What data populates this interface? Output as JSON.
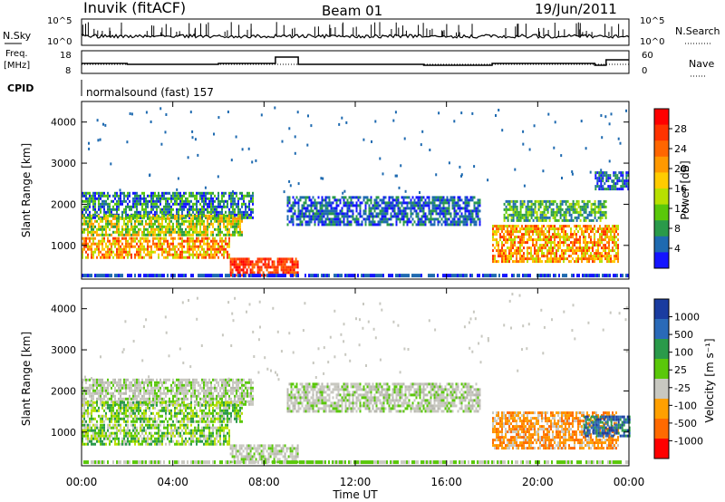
{
  "header": {
    "station": "Inuvik (fitACF)",
    "beam": "Beam 01",
    "date": "19/Jun/2011"
  },
  "noise_panel": {
    "left_label": "N.Sky",
    "right_label": "N.Search",
    "ticks_top": "10^5",
    "ticks_bottom": "10^0",
    "right_ticks_top": "10^5",
    "right_ticks_bottom": "10^0"
  },
  "freq_panel": {
    "label_line1": "Freq.",
    "label_line2": "[MHz]",
    "right_label": "Nave",
    "left_ticks": [
      "18",
      "8"
    ],
    "right_ticks": [
      "60",
      "0"
    ]
  },
  "cpid": {
    "label": "CPID",
    "value": "normalsound (fast) 157"
  },
  "chart_data": [
    {
      "type": "heatmap",
      "name": "power",
      "ylabel": "Slant Range [km]",
      "xlabel": "",
      "x_ticks": [
        "00:00",
        "04:00",
        "08:00",
        "12:00",
        "16:00",
        "20:00",
        "00:00"
      ],
      "x_range_hours": [
        0,
        24
      ],
      "y_ticks": [
        1000,
        2000,
        3000,
        4000
      ],
      "y_range_km": [
        180,
        4500
      ],
      "colorbar_label": "Power [dB]",
      "colorbar_ticks": [
        "28",
        "24",
        "20",
        "16",
        "12",
        "8",
        "4"
      ],
      "colorbar_colors": [
        "#ff0000",
        "#ff3300",
        "#ff6600",
        "#ff9900",
        "#ffcc00",
        "#b8e000",
        "#5ac80a",
        "#2a9a4a",
        "#1e6ab0",
        "#1414ff"
      ],
      "echo_bands": [
        {
          "t0": 0.0,
          "t1": 7.5,
          "r0": 1700,
          "r1": 2300,
          "level": "low-mid"
        },
        {
          "t0": 0.0,
          "t1": 7.0,
          "r0": 1250,
          "r1": 1750,
          "level": "mid-high"
        },
        {
          "t0": 0.0,
          "t1": 6.5,
          "r0": 700,
          "r1": 1200,
          "level": "high"
        },
        {
          "t0": 6.5,
          "t1": 9.5,
          "r0": 300,
          "r1": 700,
          "level": "very-high"
        },
        {
          "t0": 9.0,
          "t1": 17.5,
          "r0": 1500,
          "r1": 2200,
          "level": "low"
        },
        {
          "t0": 18.0,
          "t1": 23.5,
          "r0": 600,
          "r1": 1500,
          "level": "high"
        },
        {
          "t0": 18.5,
          "t1": 23.0,
          "r0": 1600,
          "r1": 2100,
          "level": "mid"
        },
        {
          "t0": 22.5,
          "t1": 24.0,
          "r0": 2400,
          "r1": 2800,
          "level": "low"
        }
      ]
    },
    {
      "type": "heatmap",
      "name": "velocity",
      "ylabel": "Slant Range [km]",
      "xlabel": "Time UT",
      "x_ticks": [
        "00:00",
        "04:00",
        "08:00",
        "12:00",
        "16:00",
        "20:00",
        "00:00"
      ],
      "x_range_hours": [
        0,
        24
      ],
      "y_ticks": [
        1000,
        2000,
        3000,
        4000
      ],
      "y_range_km": [
        180,
        4500
      ],
      "colorbar_label": "Velocity [m s⁻¹]",
      "colorbar_ticks": [
        "1000",
        "500",
        "100",
        "25",
        "-25",
        "-100",
        "-500",
        "-1000"
      ],
      "colorbar_colors": [
        "#1a3ca0",
        "#2a6ab8",
        "#2a9a4a",
        "#5ac80a",
        "#c8c8c0",
        "#ffa000",
        "#ff6a00",
        "#ff0000"
      ],
      "echo_bands": [
        {
          "t0": 0.0,
          "t1": 7.5,
          "r0": 1700,
          "r1": 2300,
          "level": "near-zero"
        },
        {
          "t0": 0.0,
          "t1": 7.0,
          "r0": 1250,
          "r1": 1750,
          "level": "positive"
        },
        {
          "t0": 0.0,
          "t1": 6.5,
          "r0": 700,
          "r1": 1200,
          "level": "positive"
        },
        {
          "t0": 6.5,
          "t1": 9.5,
          "r0": 300,
          "r1": 700,
          "level": "near-zero"
        },
        {
          "t0": 9.0,
          "t1": 17.5,
          "r0": 1500,
          "r1": 2200,
          "level": "near-zero"
        },
        {
          "t0": 18.0,
          "t1": 23.5,
          "r0": 600,
          "r1": 1500,
          "level": "negative"
        },
        {
          "t0": 22.0,
          "t1": 24.0,
          "r0": 900,
          "r1": 1400,
          "level": "strong-positive"
        }
      ]
    }
  ]
}
